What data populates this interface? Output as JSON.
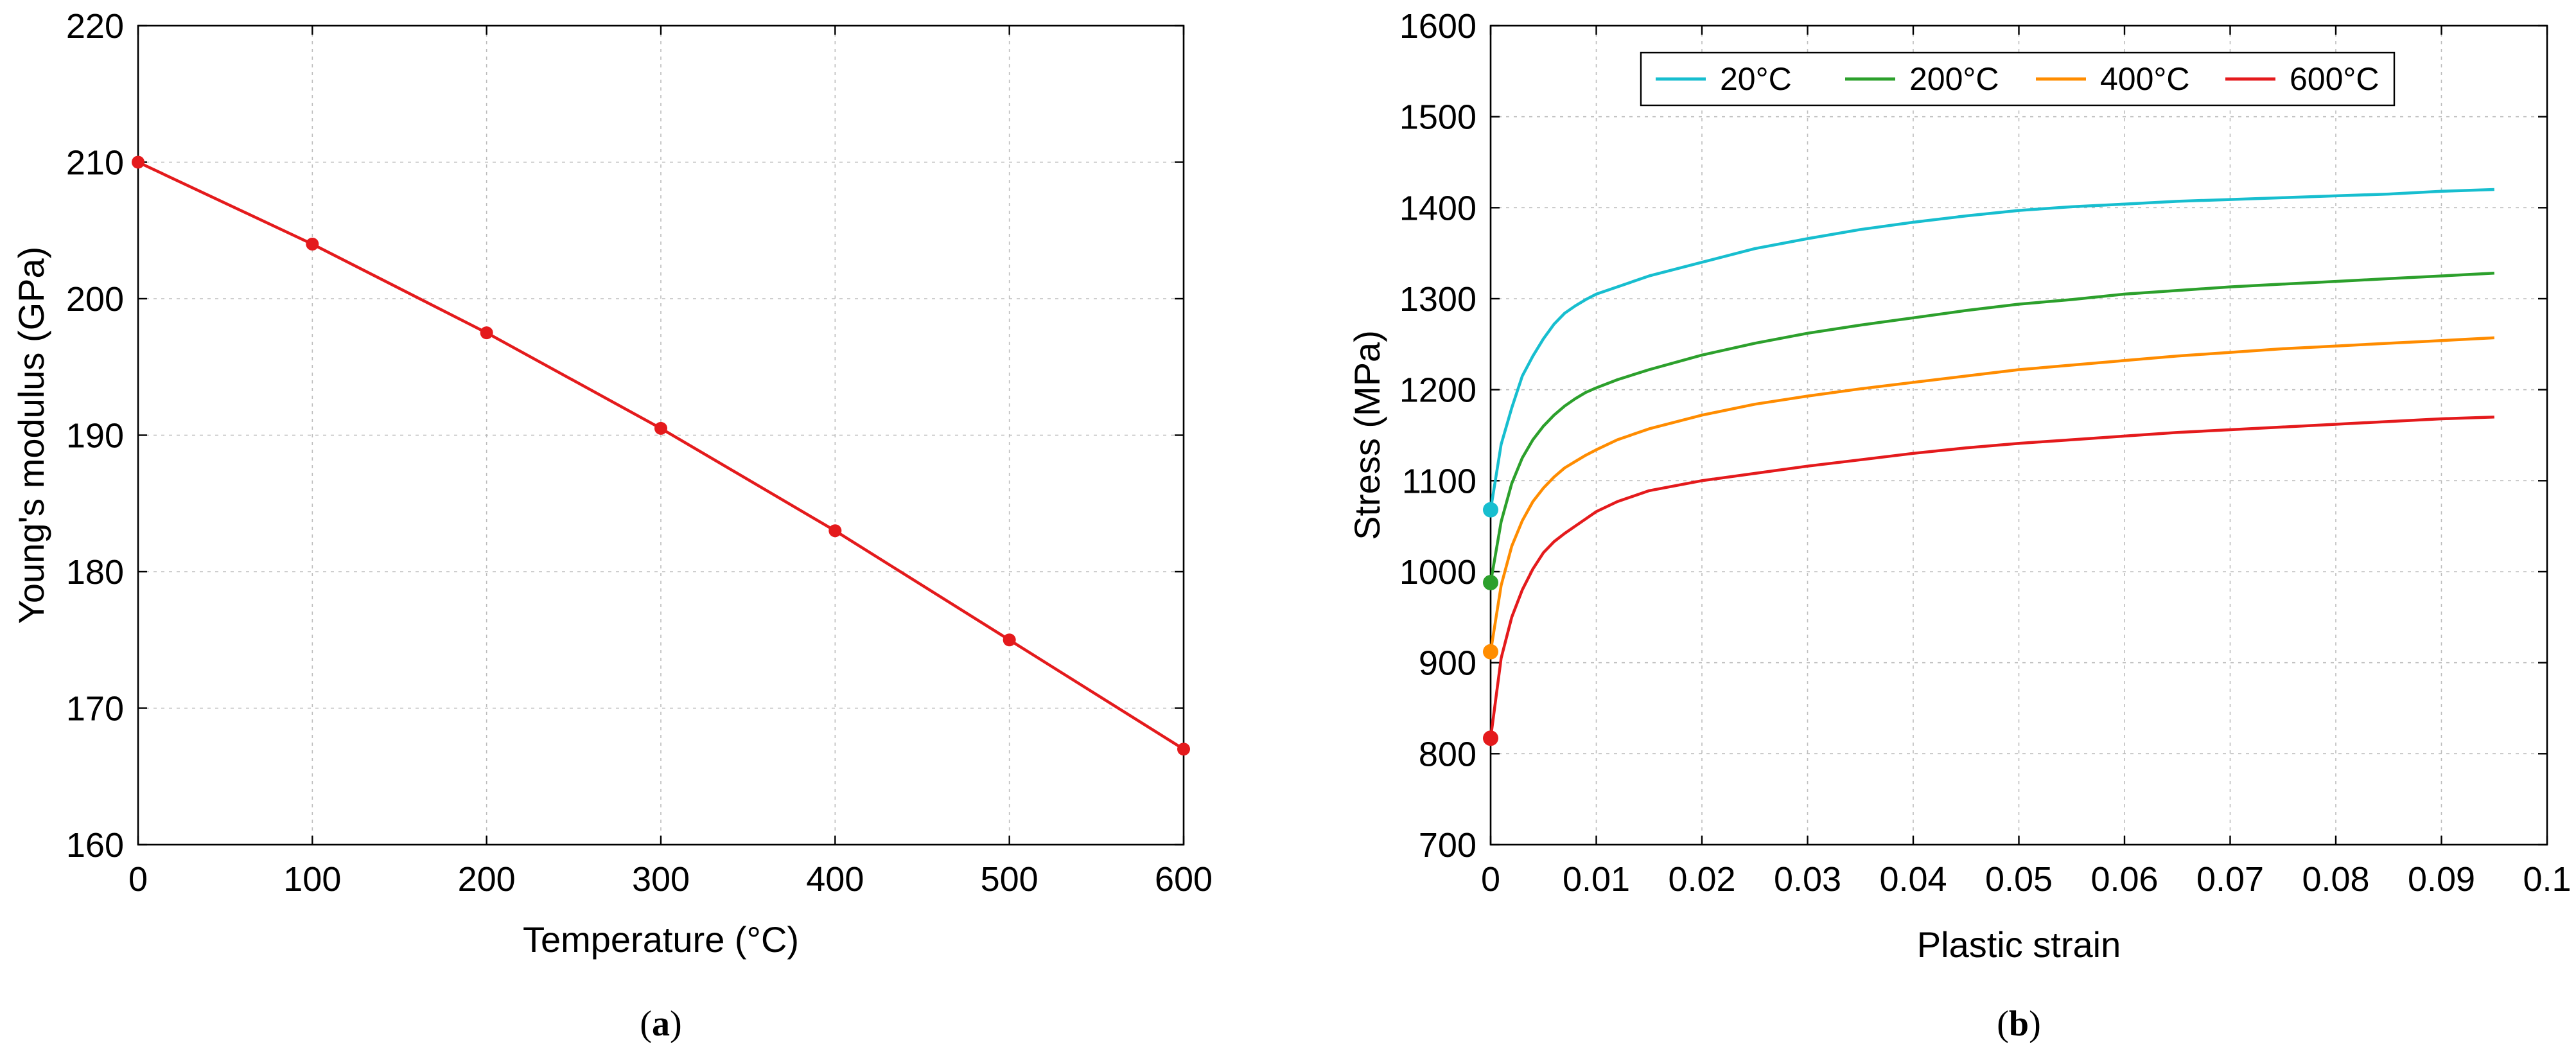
{
  "chart_data": [
    {
      "type": "line",
      "panel_label": "a",
      "title": "",
      "xlabel": "Temperature (°C)",
      "ylabel": "Young's modulus (GPa)",
      "xlim": [
        0,
        600
      ],
      "ylim": [
        160,
        220
      ],
      "xticks": [
        0,
        100,
        200,
        300,
        400,
        500,
        600
      ],
      "yticks": [
        160,
        170,
        180,
        190,
        200,
        210,
        220
      ],
      "grid": true,
      "series": [
        {
          "name": "Young's modulus",
          "color": "#e41a1c",
          "markers": true,
          "x": [
            0,
            100,
            200,
            300,
            400,
            500,
            600
          ],
          "y": [
            210,
            204,
            197.5,
            190.5,
            183,
            175,
            167
          ]
        }
      ]
    },
    {
      "type": "line",
      "panel_label": "b",
      "title": "",
      "xlabel": "Plastic strain",
      "ylabel": "Stress (MPa)",
      "xlim": [
        0,
        0.1
      ],
      "ylim": [
        700,
        1600
      ],
      "xticks": [
        0,
        0.01,
        0.02,
        0.03,
        0.04,
        0.05,
        0.06,
        0.07,
        0.08,
        0.09,
        0.1
      ],
      "yticks": [
        700,
        800,
        900,
        1000,
        1100,
        1200,
        1300,
        1400,
        1500,
        1600
      ],
      "grid": true,
      "legend": "top-center",
      "series": [
        {
          "name": "20°C",
          "color": "#17becf",
          "x": [
            0,
            0.001,
            0.002,
            0.003,
            0.004,
            0.005,
            0.006,
            0.007,
            0.008,
            0.009,
            0.01,
            0.012,
            0.015,
            0.02,
            0.025,
            0.03,
            0.035,
            0.04,
            0.045,
            0.05,
            0.055,
            0.06,
            0.065,
            0.07,
            0.075,
            0.08,
            0.085,
            0.09,
            0.095
          ],
          "y": [
            1068,
            1140,
            1180,
            1215,
            1237,
            1256,
            1272,
            1284,
            1292,
            1299,
            1305,
            1313,
            1325,
            1340,
            1355,
            1366,
            1376,
            1384,
            1391,
            1397,
            1401,
            1404,
            1407,
            1409,
            1411,
            1413,
            1415,
            1418,
            1420
          ]
        },
        {
          "name": "200°C",
          "color": "#2ca02c",
          "x": [
            0,
            0.001,
            0.002,
            0.003,
            0.004,
            0.005,
            0.006,
            0.007,
            0.008,
            0.009,
            0.01,
            0.012,
            0.015,
            0.02,
            0.025,
            0.03,
            0.035,
            0.04,
            0.045,
            0.05,
            0.055,
            0.06,
            0.065,
            0.07,
            0.075,
            0.08,
            0.085,
            0.09,
            0.095
          ],
          "y": [
            988,
            1055,
            1097,
            1125,
            1145,
            1160,
            1172,
            1182,
            1190,
            1197,
            1202,
            1211,
            1222,
            1238,
            1251,
            1262,
            1271,
            1279,
            1287,
            1294,
            1299,
            1305,
            1309,
            1313,
            1316,
            1319,
            1322,
            1325,
            1328
          ]
        },
        {
          "name": "400°C",
          "color": "#ff8c00",
          "x": [
            0,
            0.001,
            0.002,
            0.003,
            0.004,
            0.005,
            0.006,
            0.007,
            0.008,
            0.009,
            0.01,
            0.012,
            0.015,
            0.02,
            0.025,
            0.03,
            0.035,
            0.04,
            0.045,
            0.05,
            0.055,
            0.06,
            0.065,
            0.07,
            0.075,
            0.08,
            0.085,
            0.09,
            0.095
          ],
          "y": [
            912,
            985,
            1028,
            1056,
            1077,
            1092,
            1104,
            1114,
            1121,
            1128,
            1134,
            1145,
            1157,
            1172,
            1184,
            1193,
            1201,
            1208,
            1215,
            1222,
            1227,
            1232,
            1237,
            1241,
            1245,
            1248,
            1251,
            1254,
            1257
          ]
        },
        {
          "name": "600°C",
          "color": "#e41a1c",
          "x": [
            0,
            0.001,
            0.002,
            0.003,
            0.004,
            0.005,
            0.006,
            0.007,
            0.008,
            0.009,
            0.01,
            0.012,
            0.015,
            0.02,
            0.025,
            0.03,
            0.035,
            0.04,
            0.045,
            0.05,
            0.055,
            0.06,
            0.065,
            0.07,
            0.075,
            0.08,
            0.085,
            0.09,
            0.095
          ],
          "y": [
            817,
            905,
            950,
            980,
            1003,
            1021,
            1033,
            1042,
            1050,
            1058,
            1066,
            1077,
            1089,
            1100,
            1108,
            1116,
            1123,
            1130,
            1136,
            1141,
            1145,
            1149,
            1153,
            1156,
            1159,
            1162,
            1165,
            1168,
            1170
          ]
        }
      ]
    }
  ]
}
